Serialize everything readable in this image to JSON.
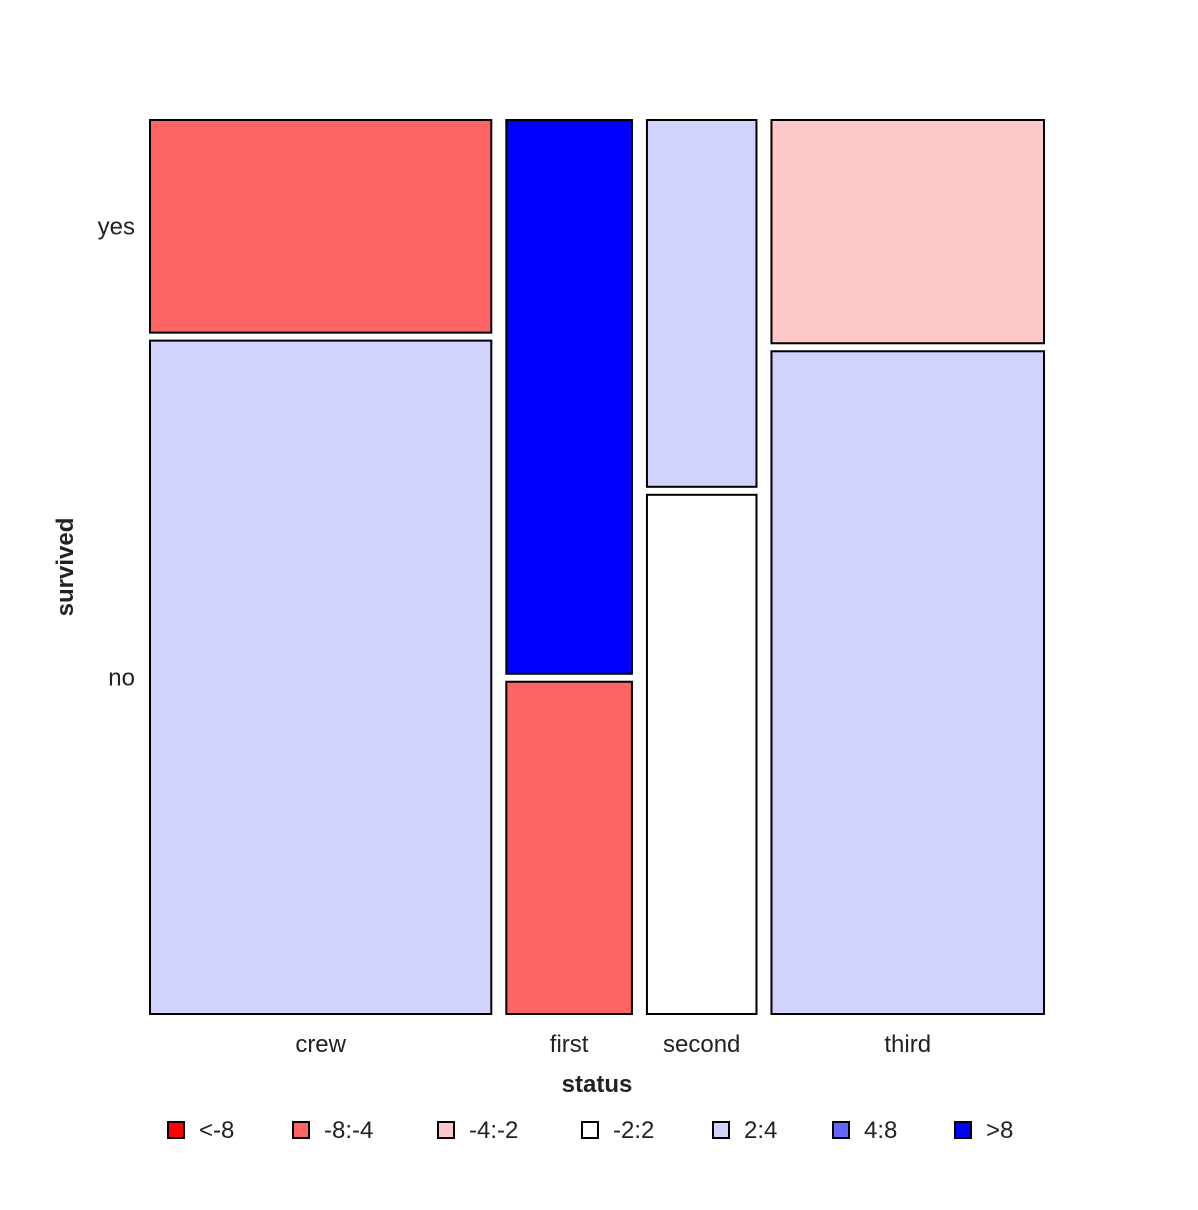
{
  "chart_data": {
    "type": "mosaic",
    "xlabel": "status",
    "ylabel": "survived",
    "x_categories": [
      {
        "name": "crew",
        "share": 0.402
      },
      {
        "name": "first",
        "share": 0.148
      },
      {
        "name": "second",
        "share": 0.129
      },
      {
        "name": "third",
        "share": 0.321
      }
    ],
    "y_categories": [
      "yes",
      "no"
    ],
    "cells": [
      {
        "status": "crew",
        "survived": "yes",
        "proportion": 0.24,
        "bin": "-8:-4",
        "color": "#FF6464"
      },
      {
        "status": "crew",
        "survived": "no",
        "proportion": 0.76,
        "bin": "2:4",
        "color": "#D2D2FF"
      },
      {
        "status": "first",
        "survived": "yes",
        "proportion": 0.625,
        "bin": ">8",
        "color": "#0000FF"
      },
      {
        "status": "first",
        "survived": "no",
        "proportion": 0.375,
        "bin": "-8:-4",
        "color": "#FF6464"
      },
      {
        "status": "second",
        "survived": "yes",
        "proportion": 0.414,
        "bin": "2:4",
        "color": "#D2D2FF"
      },
      {
        "status": "second",
        "survived": "no",
        "proportion": 0.586,
        "bin": "-2:2",
        "color": "#FFFFFF"
      },
      {
        "status": "third",
        "survived": "yes",
        "proportion": 0.252,
        "bin": "-4:-2",
        "color": "#FFC8C8"
      },
      {
        "status": "third",
        "survived": "no",
        "proportion": 0.748,
        "bin": "2:4",
        "color": "#D2D2FF"
      }
    ],
    "y_tick_labels": [
      "yes",
      "no"
    ],
    "legend": {
      "placement": "bottom",
      "entries": [
        {
          "label": "<-8",
          "color": "#FF0000"
        },
        {
          "label": "-8:-4",
          "color": "#FF6464"
        },
        {
          "label": "-4:-2",
          "color": "#FFC8C8"
        },
        {
          "label": "-2:2",
          "color": "#FFFFFF"
        },
        {
          "label": "2:4",
          "color": "#D2D2FF"
        },
        {
          "label": "4:8",
          "color": "#6464FF"
        },
        {
          "label": ">8",
          "color": "#0000FF"
        }
      ]
    },
    "grid": false,
    "tile_border_color": "#000000"
  }
}
